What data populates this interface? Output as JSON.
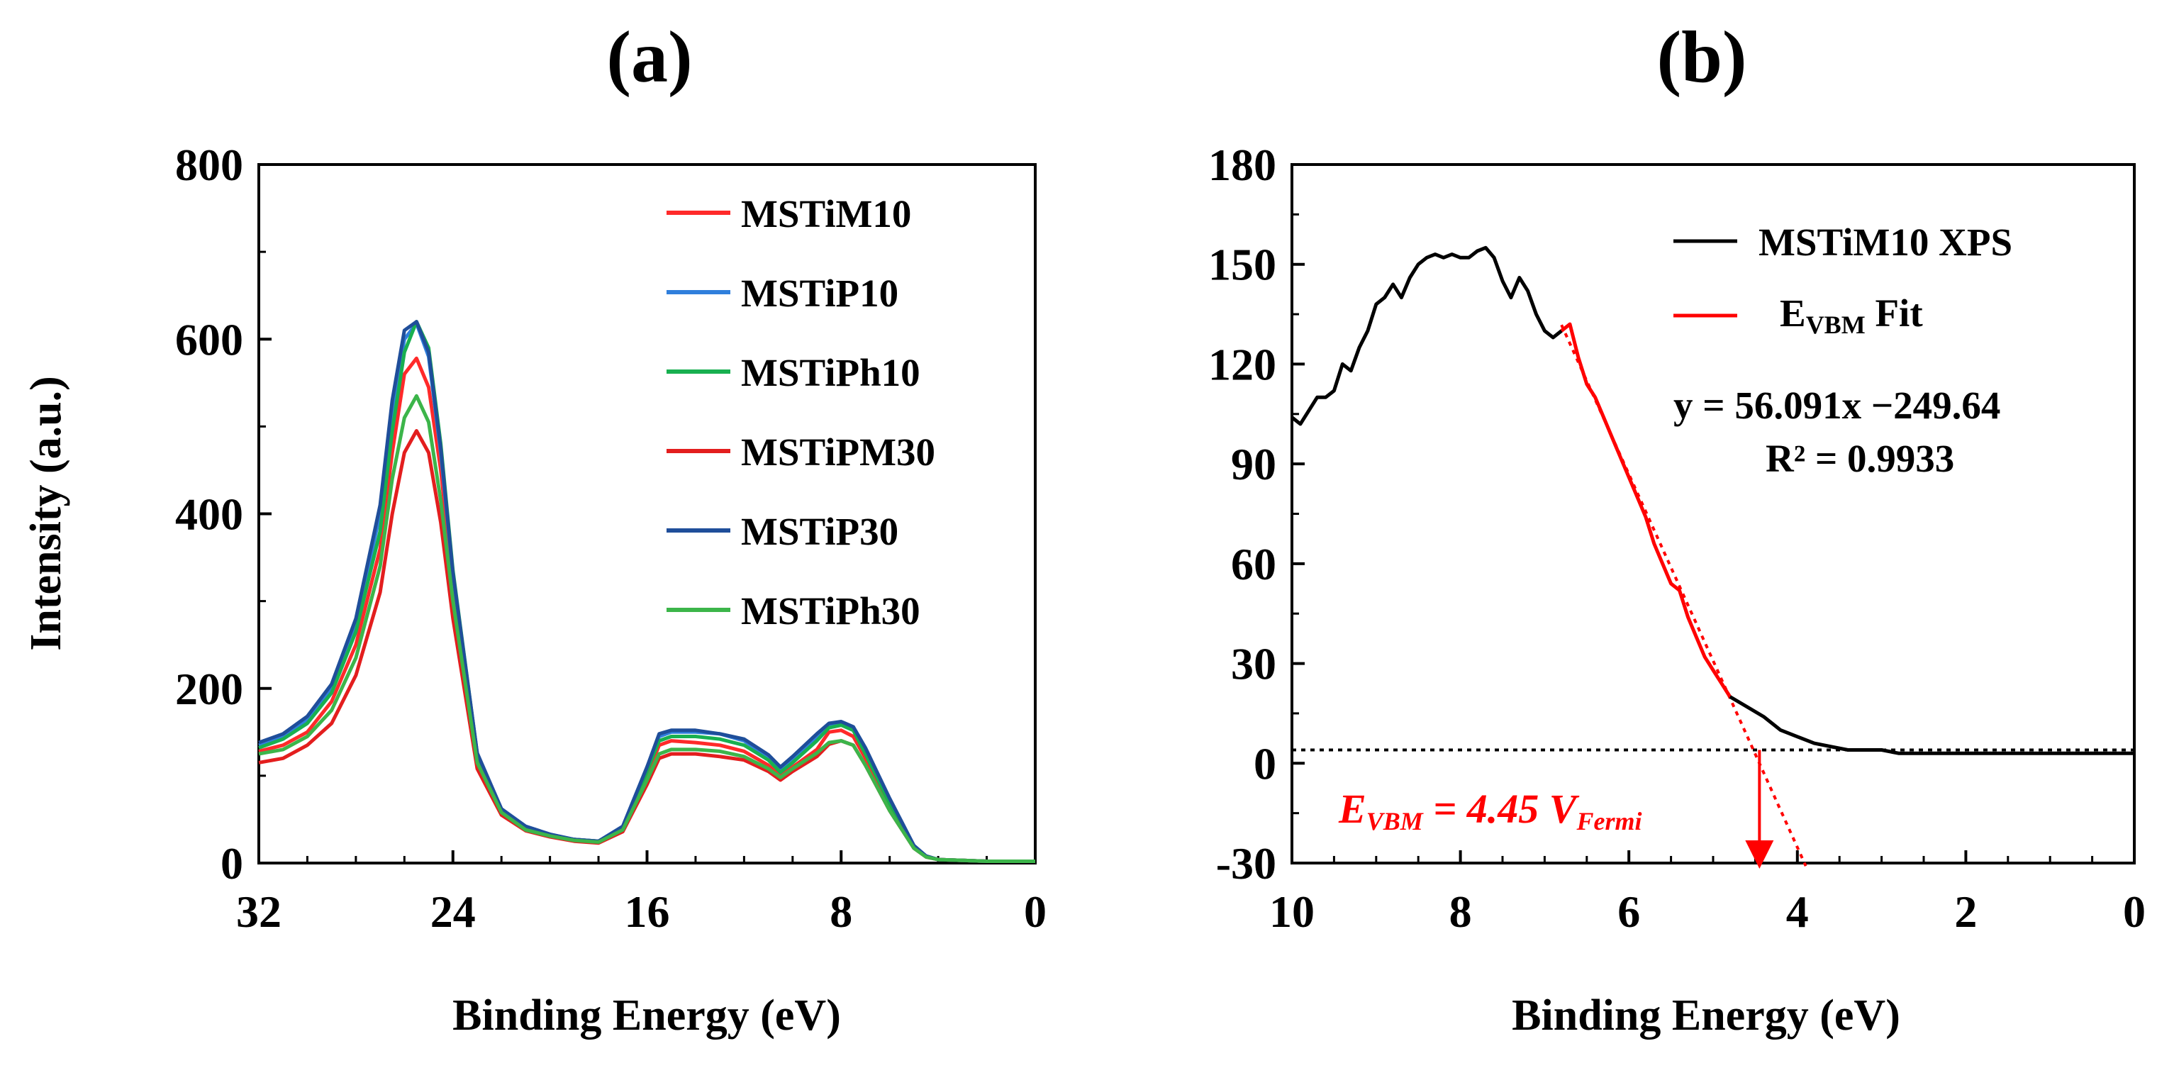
{
  "chart_data": [
    {
      "type": "line",
      "panel": "(a)",
      "title": "(a)",
      "xlabel": "Binding Energy (eV)",
      "ylabel": "Intensity (a.u.)",
      "xlim": [
        32,
        0
      ],
      "ylim": [
        0,
        800
      ],
      "xticks": [
        32,
        24,
        16,
        8,
        0
      ],
      "yticks": [
        0,
        200,
        400,
        600,
        800
      ],
      "grid": false,
      "legend": "top-right",
      "series": [
        {
          "name": "MSTiM10",
          "color": "#ff2a2a",
          "x": [
            32,
            31,
            30,
            29,
            28,
            27,
            26.5,
            26,
            25.5,
            25,
            24.5,
            24,
            23,
            22,
            21,
            20,
            19,
            18,
            17,
            16,
            15.5,
            15,
            14,
            13,
            12,
            11,
            10.5,
            10,
            9,
            8.5,
            8,
            7.5,
            7,
            6,
            5,
            4.5,
            4,
            3,
            2,
            1,
            0
          ],
          "y": [
            128,
            135,
            150,
            185,
            250,
            360,
            470,
            560,
            578,
            545,
            450,
            320,
            120,
            60,
            40,
            32,
            27,
            25,
            40,
            100,
            135,
            140,
            138,
            135,
            128,
            112,
            100,
            110,
            130,
            150,
            152,
            145,
            120,
            65,
            18,
            8,
            4,
            3,
            2,
            2,
            2
          ]
        },
        {
          "name": "MSTiP10",
          "color": "#2f7fdc",
          "x": [
            32,
            31,
            30,
            29,
            28,
            27,
            26.5,
            26,
            25.5,
            25,
            24.5,
            24,
            23,
            22,
            21,
            20,
            19,
            18,
            17,
            16,
            15.5,
            15,
            14,
            13,
            12,
            11,
            10.5,
            10,
            9,
            8.5,
            8,
            7.5,
            7,
            6,
            5,
            4.5,
            4,
            3,
            2,
            1,
            0
          ],
          "y": [
            135,
            145,
            165,
            200,
            275,
            400,
            520,
            600,
            618,
            580,
            470,
            330,
            125,
            62,
            42,
            33,
            27,
            25,
            42,
            110,
            145,
            150,
            150,
            148,
            140,
            122,
            108,
            120,
            145,
            158,
            160,
            155,
            130,
            72,
            20,
            8,
            4,
            3,
            2,
            2,
            2
          ]
        },
        {
          "name": "MSTiPh10",
          "color": "#18b050",
          "x": [
            32,
            31,
            30,
            29,
            28,
            27,
            26.5,
            26,
            25.5,
            25,
            24.5,
            24,
            23,
            22,
            21,
            20,
            19,
            18,
            17,
            16,
            15.5,
            15,
            14,
            13,
            12,
            11,
            10.5,
            10,
            9,
            8.5,
            8,
            7.5,
            7,
            6,
            5,
            4.5,
            4,
            3,
            2,
            1,
            0
          ],
          "y": [
            132,
            142,
            160,
            195,
            265,
            380,
            495,
            585,
            620,
            590,
            480,
            335,
            125,
            60,
            40,
            32,
            27,
            25,
            40,
            105,
            140,
            145,
            145,
            142,
            135,
            118,
            104,
            115,
            140,
            155,
            158,
            152,
            125,
            68,
            18,
            8,
            4,
            3,
            2,
            2,
            2
          ]
        },
        {
          "name": "MSTiPM30",
          "color": "#e31e1e",
          "x": [
            32,
            31,
            30,
            29,
            28,
            27,
            26.5,
            26,
            25.5,
            25,
            24.5,
            24,
            23,
            22,
            21,
            20,
            19,
            18,
            17,
            16,
            15.5,
            15,
            14,
            13,
            12,
            11,
            10.5,
            10,
            9,
            8.5,
            8,
            7.5,
            7,
            6,
            5,
            4.5,
            4,
            3,
            2,
            1,
            0
          ],
          "y": [
            115,
            120,
            135,
            160,
            215,
            310,
            400,
            470,
            495,
            470,
            390,
            280,
            108,
            55,
            37,
            30,
            25,
            23,
            36,
            90,
            120,
            125,
            125,
            122,
            118,
            105,
            95,
            105,
            122,
            136,
            140,
            135,
            112,
            60,
            17,
            7,
            4,
            3,
            2,
            2,
            2
          ]
        },
        {
          "name": "MSTiP30",
          "color": "#1f4e9a",
          "x": [
            32,
            31,
            30,
            29,
            28,
            27,
            26.5,
            26,
            25.5,
            25,
            24.5,
            24,
            23,
            22,
            21,
            20,
            19,
            18,
            17,
            16,
            15.5,
            15,
            14,
            13,
            12,
            11,
            10.5,
            10,
            9,
            8.5,
            8,
            7.5,
            7,
            6,
            5,
            4.5,
            4,
            3,
            2,
            1,
            0
          ],
          "y": [
            138,
            148,
            168,
            205,
            280,
            410,
            530,
            610,
            620,
            585,
            475,
            332,
            126,
            62,
            42,
            33,
            27,
            25,
            42,
            110,
            148,
            152,
            152,
            148,
            142,
            124,
            110,
            122,
            148,
            160,
            162,
            156,
            132,
            74,
            20,
            8,
            4,
            3,
            2,
            2,
            2
          ]
        },
        {
          "name": "MSTiPh30",
          "color": "#3cb54a",
          "x": [
            32,
            31,
            30,
            29,
            28,
            27,
            26.5,
            26,
            25.5,
            25,
            24.5,
            24,
            23,
            22,
            21,
            20,
            19,
            18,
            17,
            16,
            15.5,
            15,
            14,
            13,
            12,
            11,
            10.5,
            10,
            9,
            8.5,
            8,
            7.5,
            7,
            6,
            5,
            4.5,
            4,
            3,
            2,
            1,
            0
          ],
          "y": [
            125,
            130,
            145,
            175,
            235,
            340,
            440,
            510,
            535,
            505,
            415,
            300,
            115,
            58,
            38,
            31,
            26,
            24,
            38,
            95,
            125,
            130,
            130,
            128,
            122,
            108,
            98,
            108,
            126,
            138,
            140,
            135,
            112,
            60,
            17,
            7,
            4,
            3,
            2,
            2,
            2
          ]
        }
      ]
    },
    {
      "type": "line",
      "panel": "(b)",
      "title": "(b)",
      "xlabel": "Binding Energy (eV)",
      "ylabel": "",
      "xlim": [
        10,
        0
      ],
      "ylim": [
        -30,
        180
      ],
      "xticks": [
        10,
        8,
        6,
        4,
        2,
        0
      ],
      "yticks": [
        -30,
        0,
        30,
        60,
        90,
        120,
        150,
        180
      ],
      "grid": false,
      "legend": "top-right",
      "legend_entries": [
        {
          "label": "MSTiM10 XPS",
          "color": "#000000"
        },
        {
          "label_main": "E",
          "label_sub": "VBM",
          "label_tail": " Fit",
          "color": "#ff0000"
        }
      ],
      "equation": "y = 56.091x −249.64",
      "r_squared": "R² = 0.9933",
      "evbm_annotation": {
        "main": "E",
        "sub": "VBM",
        "value": " = 4.45 V",
        "unit_sub": "Fermi",
        "x": 4.45,
        "color": "#ff0000"
      },
      "baseline_y": 4,
      "fit_line": {
        "slope": 56.091,
        "intercept": -249.64,
        "x_range": [
          6.8,
          3.9
        ]
      },
      "series": [
        {
          "name": "MSTiM10 XPS",
          "color": "#000000",
          "x": [
            10,
            9.9,
            9.8,
            9.7,
            9.6,
            9.5,
            9.4,
            9.3,
            9.2,
            9.1,
            9.0,
            8.9,
            8.8,
            8.7,
            8.6,
            8.5,
            8.4,
            8.3,
            8.2,
            8.1,
            8.0,
            7.9,
            7.8,
            7.7,
            7.6,
            7.5,
            7.4,
            7.3,
            7.2,
            7.1,
            7.0,
            6.9,
            6.8
          ],
          "y": [
            104,
            102,
            106,
            110,
            110,
            112,
            120,
            118,
            125,
            130,
            138,
            140,
            144,
            140,
            146,
            150,
            152,
            153,
            152,
            153,
            152,
            152,
            154,
            155,
            152,
            145,
            140,
            146,
            142,
            135,
            130,
            128,
            130
          ]
        },
        {
          "name": "E_VBM Fit region",
          "color": "#ff0000",
          "x": [
            6.8,
            6.7,
            6.6,
            6.5,
            6.4,
            6.3,
            6.2,
            6.1,
            6.0,
            5.9,
            5.8,
            5.7,
            5.6,
            5.5,
            5.4,
            5.3,
            5.2,
            5.1,
            5.0,
            4.9,
            4.8
          ],
          "y": [
            130,
            132,
            122,
            114,
            110,
            104,
            98,
            92,
            86,
            80,
            74,
            66,
            60,
            54,
            52,
            44,
            38,
            32,
            28,
            24,
            20
          ]
        },
        {
          "name": "MSTiM10 XPS tail",
          "color": "#000000",
          "x": [
            4.8,
            4.6,
            4.4,
            4.2,
            4.0,
            3.8,
            3.6,
            3.4,
            3.2,
            3.0,
            2.8,
            2.6,
            2.4,
            2.2,
            2.0,
            1.8,
            1.6,
            1.4,
            1.2,
            1.0,
            0.8,
            0.6,
            0.4,
            0.2,
            0.0
          ],
          "y": [
            20,
            17,
            14,
            10,
            8,
            6,
            5,
            4,
            4,
            4,
            3,
            3,
            3,
            3,
            3,
            3,
            3,
            3,
            3,
            3,
            3,
            3,
            3,
            3,
            3
          ]
        }
      ]
    }
  ]
}
